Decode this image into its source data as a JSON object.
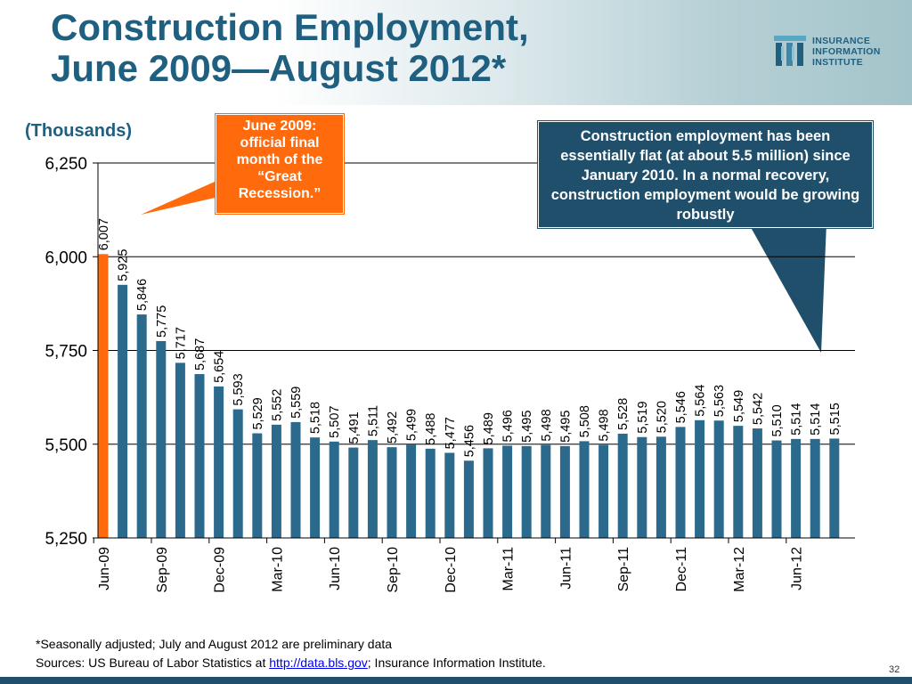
{
  "slide": {
    "title_line1": "Construction Employment,",
    "title_line2": "June 2009—August 2012*",
    "units": "(Thousands)",
    "logo": {
      "line1": "INSURANCE",
      "line2": "INFORMATION",
      "line3": "INSTITUTE"
    },
    "callout_orange": "June 2009: official final month of the “Great Recession.”",
    "callout_blue": "Construction  employment has been essentially flat (at about 5.5 million) since January 2010.  In a normal recovery, construction employment would be growing robustly",
    "footnote": "*Seasonally adjusted; July and August 2012 are preliminary data",
    "sources_prefix": "Sources: US Bureau of Labor Statistics at ",
    "sources_link": "http://data.bls.gov",
    "sources_suffix": "; Insurance Information Institute.",
    "page_number": "32"
  },
  "colors": {
    "title": "#1f5f80",
    "bar": "#2b6a8c",
    "highlight_bar": "#ff6a0d",
    "callout_orange": "#ff6a0d",
    "callout_blue": "#1f4f6a"
  },
  "chart_data": {
    "type": "bar",
    "ylim": [
      5250,
      6250
    ],
    "y_ticks": [
      "5,250",
      "5,500",
      "5,750",
      "6,000",
      "6,250"
    ],
    "y_tick_values": [
      5250,
      5500,
      5750,
      6000,
      6250
    ],
    "gridlines": true,
    "highlight_index": 0,
    "values": [
      6007,
      5925,
      5846,
      5775,
      5717,
      5687,
      5654,
      5593,
      5529,
      5552,
      5559,
      5518,
      5507,
      5491,
      5511,
      5492,
      5499,
      5488,
      5477,
      5456,
      5489,
      5496,
      5495,
      5498,
      5495,
      5508,
      5498,
      5528,
      5519,
      5520,
      5546,
      5564,
      5563,
      5549,
      5542,
      5510,
      5514,
      5514,
      5515
    ],
    "value_labels": [
      "6,007",
      "5,925",
      "5,846",
      "5,775",
      "5,717",
      "5,687",
      "5,654",
      "5,593",
      "5,529",
      "5,552",
      "5,559",
      "5,518",
      "5,507",
      "5,491",
      "5,511",
      "5,492",
      "5,499",
      "5,488",
      "5,477",
      "5,456",
      "5,489",
      "5,496",
      "5,495",
      "5,498",
      "5,495",
      "5,508",
      "5,498",
      "5,528",
      "5,519",
      "5,520",
      "5,546",
      "5,564",
      "5,563",
      "5,549",
      "5,542",
      "5,510",
      "5,514",
      "5,514",
      "5,515"
    ],
    "x_labels": [
      {
        "index": 0,
        "label": "Jun-09"
      },
      {
        "index": 3,
        "label": "Sep-09"
      },
      {
        "index": 6,
        "label": "Dec-09"
      },
      {
        "index": 9,
        "label": "Mar-10"
      },
      {
        "index": 12,
        "label": "Jun-10"
      },
      {
        "index": 15,
        "label": "Sep-10"
      },
      {
        "index": 18,
        "label": "Dec-10"
      },
      {
        "index": 21,
        "label": "Mar-11"
      },
      {
        "index": 24,
        "label": "Jun-11"
      },
      {
        "index": 27,
        "label": "Sep-11"
      },
      {
        "index": 30,
        "label": "Dec-11"
      },
      {
        "index": 33,
        "label": "Mar-12"
      },
      {
        "index": 36,
        "label": "Jun-12"
      }
    ]
  }
}
